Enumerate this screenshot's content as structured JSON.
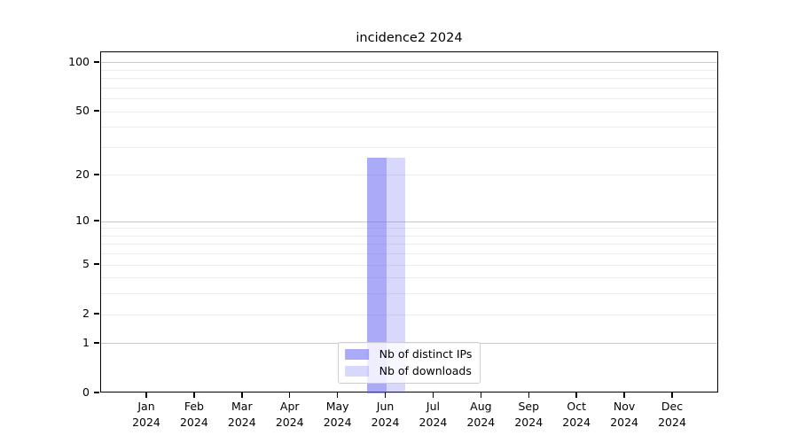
{
  "chart_data": {
    "type": "bar",
    "title": "incidence2 2024",
    "x_categories": [
      {
        "month": "Jan",
        "year": "2024"
      },
      {
        "month": "Feb",
        "year": "2024"
      },
      {
        "month": "Mar",
        "year": "2024"
      },
      {
        "month": "Apr",
        "year": "2024"
      },
      {
        "month": "May",
        "year": "2024"
      },
      {
        "month": "Jun",
        "year": "2024"
      },
      {
        "month": "Jul",
        "year": "2024"
      },
      {
        "month": "Aug",
        "year": "2024"
      },
      {
        "month": "Sep",
        "year": "2024"
      },
      {
        "month": "Oct",
        "year": "2024"
      },
      {
        "month": "Nov",
        "year": "2024"
      },
      {
        "month": "Dec",
        "year": "2024"
      }
    ],
    "series": [
      {
        "name": "Nb of distinct IPs",
        "color": "#6464f2",
        "alpha": 0.55,
        "rendered_color": "#aaaaf8",
        "values": [
          0,
          0,
          0,
          0,
          0,
          26,
          0,
          0,
          0,
          0,
          0,
          0
        ]
      },
      {
        "name": "Nb of downloads",
        "color": "#6464f2",
        "alpha": 0.25,
        "rendered_color": "#dadaf8",
        "values": [
          0,
          0,
          0,
          0,
          0,
          26,
          0,
          0,
          0,
          0,
          0,
          0
        ]
      }
    ],
    "xlabel": "",
    "ylabel": "",
    "yscale": "log1p",
    "ylim": [
      0,
      116
    ],
    "y_ticks": [
      0,
      1,
      2,
      5,
      10,
      20,
      50,
      100
    ],
    "y_gridlines_dark": [
      1,
      10,
      100
    ],
    "y_gridlines_light": [
      2,
      3,
      4,
      5,
      6,
      7,
      8,
      9,
      20,
      30,
      40,
      50,
      60,
      70,
      80,
      90
    ],
    "grid": true,
    "legend_position": "lower center"
  },
  "colors": {
    "grid_dark": "#c9c9c9",
    "grid_light": "#ececec",
    "spine": "#000000",
    "text": "#000000",
    "legend_border": "#cccccc"
  }
}
